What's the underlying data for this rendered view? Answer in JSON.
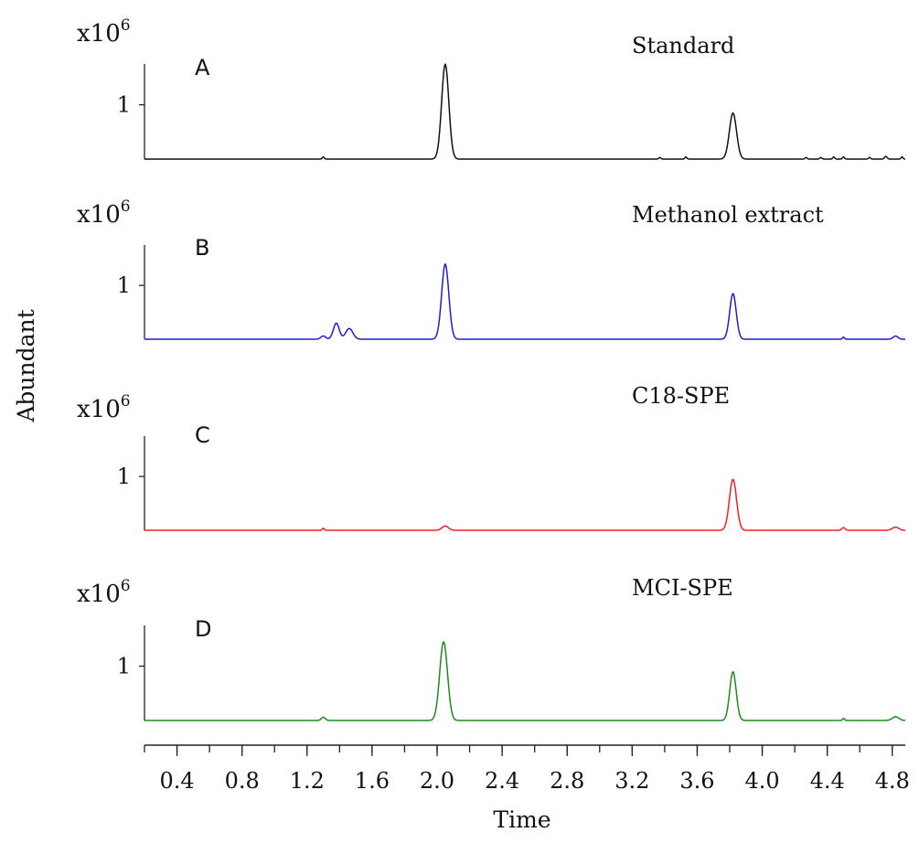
{
  "chart_data": {
    "type": "line",
    "xlabel": "Time",
    "ylabel": "Abundant",
    "xlim": [
      0.2,
      4.88
    ],
    "x_ticks": [
      "0.4",
      "0.8",
      "1.2",
      "1.6",
      "2.0",
      "2.4",
      "2.8",
      "3.2",
      "3.6",
      "4.0",
      "4.4",
      "4.8"
    ],
    "panels": [
      {
        "letter": "A",
        "title": "Standard",
        "y_scale_label": "x10",
        "y_scale_exp": "6",
        "y_tick": "1",
        "ylim": [
          0,
          1.75
        ],
        "color": "#111111",
        "peaks": [
          [
            1.3,
            0.04,
            0.006
          ],
          [
            2.05,
            1.75,
            0.022
          ],
          [
            3.82,
            0.85,
            0.022
          ],
          [
            3.37,
            0.03,
            0.006
          ],
          [
            3.53,
            0.04,
            0.006
          ],
          [
            4.27,
            0.03,
            0.006
          ],
          [
            4.36,
            0.03,
            0.006
          ],
          [
            4.44,
            0.04,
            0.006
          ],
          [
            4.5,
            0.04,
            0.006
          ],
          [
            4.66,
            0.03,
            0.006
          ],
          [
            4.76,
            0.05,
            0.008
          ],
          [
            4.86,
            0.04,
            0.006
          ]
        ]
      },
      {
        "letter": "B",
        "title": "Methanol  extract",
        "y_scale_label": "x10",
        "y_scale_exp": "6",
        "y_tick": "1",
        "ylim": [
          0,
          1.75
        ],
        "color": "#1f1fc8",
        "peaks": [
          [
            1.3,
            0.06,
            0.015
          ],
          [
            1.38,
            0.3,
            0.018
          ],
          [
            1.46,
            0.2,
            0.022
          ],
          [
            2.05,
            1.4,
            0.022
          ],
          [
            3.82,
            0.85,
            0.02
          ],
          [
            4.5,
            0.04,
            0.006
          ],
          [
            4.82,
            0.06,
            0.015
          ]
        ]
      },
      {
        "letter": "C",
        "title": "C18-SPE",
        "y_scale_label": "x10",
        "y_scale_exp": "6",
        "y_tick": "1",
        "ylim": [
          0,
          1.75
        ],
        "color": "#ee2222",
        "peaks": [
          [
            1.3,
            0.04,
            0.006
          ],
          [
            2.05,
            0.08,
            0.02
          ],
          [
            3.82,
            0.95,
            0.022
          ],
          [
            4.5,
            0.05,
            0.01
          ],
          [
            4.82,
            0.06,
            0.02
          ]
        ]
      },
      {
        "letter": "D",
        "title": "MCI-SPE",
        "y_scale_label": "x10",
        "y_scale_exp": "6",
        "y_tick": "1",
        "ylim": [
          0,
          1.75
        ],
        "color": "#1e8a1e",
        "peaks": [
          [
            1.3,
            0.06,
            0.012
          ],
          [
            2.04,
            1.45,
            0.024
          ],
          [
            3.82,
            0.9,
            0.02
          ],
          [
            4.5,
            0.04,
            0.006
          ],
          [
            4.82,
            0.07,
            0.02
          ]
        ]
      }
    ]
  }
}
